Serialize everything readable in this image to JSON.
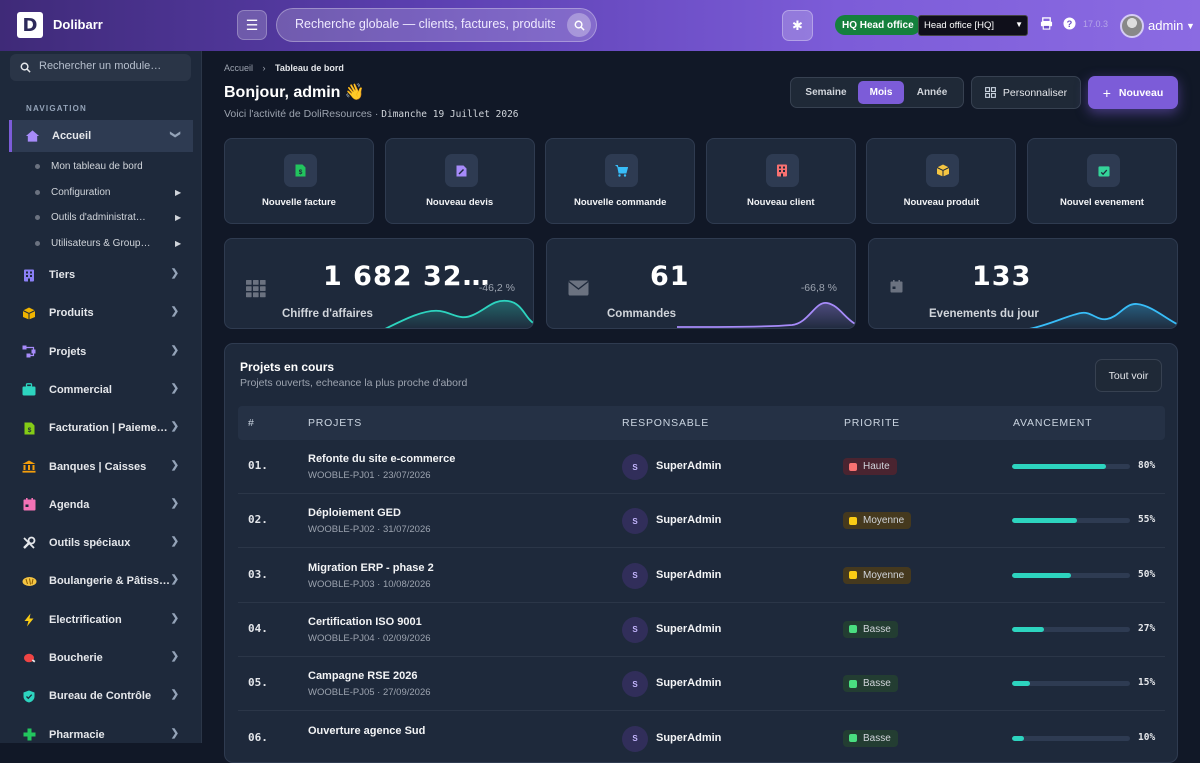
{
  "header": {
    "brand": "Dolibarr",
    "logo_letter": "D",
    "search_placeholder": "Recherche globale — clients, factures, produits…",
    "entity_badge": "HQ Head office",
    "entity_select": "Head office [HQ]",
    "version": "17.0.3",
    "user": "admin"
  },
  "sidebar": {
    "search_placeholder": "Rechercher un module…",
    "section_label": "NAVIGATION",
    "active": {
      "label": "Accueil",
      "icon": "home-icon"
    },
    "subitems": [
      {
        "label": "Mon tableau de bord",
        "has_arrow": false
      },
      {
        "label": "Configuration",
        "has_arrow": true
      },
      {
        "label": "Outils d'administrat…",
        "has_arrow": true
      },
      {
        "label": "Utilisateurs & Group…",
        "has_arrow": true
      }
    ],
    "items": [
      {
        "label": "Tiers",
        "icon": "building-icon",
        "color": "#8b7ff5"
      },
      {
        "label": "Produits",
        "icon": "box-icon",
        "color": "#f0b400"
      },
      {
        "label": "Projets",
        "icon": "flow-icon",
        "color": "#a78bfa"
      },
      {
        "label": "Commercial",
        "icon": "briefcase-icon",
        "color": "#2dd4bf"
      },
      {
        "label": "Facturation | Paieme…",
        "icon": "invoice-icon",
        "color": "#84cc16"
      },
      {
        "label": "Banques | Caisses",
        "icon": "bank-icon",
        "color": "#f59e0b"
      },
      {
        "label": "Agenda",
        "icon": "calendar-icon",
        "color": "#f472b6"
      },
      {
        "label": "Outils spéciaux",
        "icon": "tools-icon",
        "color": "#e5e7eb"
      },
      {
        "label": "Boulangerie & Pâtiss…",
        "icon": "bread-icon",
        "color": "#f5c542"
      },
      {
        "label": "Electrification",
        "icon": "bolt-icon",
        "color": "#facc15"
      },
      {
        "label": "Boucherie",
        "icon": "meat-icon",
        "color": "#ef4444"
      },
      {
        "label": "Bureau de Contrôle",
        "icon": "shield-icon",
        "color": "#2dd4bf"
      },
      {
        "label": "Pharmacie",
        "icon": "cross-icon",
        "color": "#22c55e"
      }
    ]
  },
  "page": {
    "breadcrumb_root": "Accueil",
    "breadcrumb_current": "Tableau de bord",
    "greeting": "Bonjour, admin 👋",
    "subtitle": "Voici l'activité de DoliResources ·",
    "date": "Dimanche 19 Juillet 2026",
    "periods": [
      "Semaine",
      "Mois",
      "Année"
    ],
    "active_period": "Mois",
    "customize_label": "Personnaliser",
    "new_label": "Nouveau"
  },
  "quick_actions": [
    {
      "label": "Nouvelle facture",
      "icon": "invoice-icon",
      "color": "#22c55e"
    },
    {
      "label": "Nouveau devis",
      "icon": "quote-icon",
      "color": "#a78bfa"
    },
    {
      "label": "Nouvelle commande",
      "icon": "cart-icon",
      "color": "#38bdf8"
    },
    {
      "label": "Nouveau client",
      "icon": "building-icon",
      "color": "#f87171"
    },
    {
      "label": "Nouveau produit",
      "icon": "box-icon",
      "color": "#f5c542"
    },
    {
      "label": "Nouvel evenement",
      "icon": "calendar-check-icon",
      "color": "#34d399"
    }
  ],
  "kpis": [
    {
      "value": "1 682 32…",
      "label": "Chiffre d'affaires",
      "change": "-46,2 %",
      "icon": "grid-icon",
      "color": "#2dd4bf"
    },
    {
      "value": "61",
      "label": "Commandes",
      "change": "-66,8 %",
      "icon": "mail-icon",
      "color": "#a78bfa"
    },
    {
      "value": "133",
      "label": "Evenements du jour",
      "change": "",
      "icon": "calendar-icon",
      "color": "#38bdf8"
    }
  ],
  "projects": {
    "title": "Projets en cours",
    "subtitle": "Projets ouverts, echeance la plus proche d'abord",
    "view_all": "Tout voir",
    "columns": [
      "#",
      "PROJETS",
      "RESPONSABLE",
      "PRIORITE",
      "AVANCEMENT"
    ],
    "rows": [
      {
        "num": "01.",
        "name": "Refonte du site e-commerce",
        "ref": "WOOBLE-PJ01 · 23/07/2026",
        "owner_initial": "S",
        "owner": "SuperAdmin",
        "priority": "Haute",
        "progress": 80,
        "progress_label": "80%"
      },
      {
        "num": "02.",
        "name": "Déploiement GED",
        "ref": "WOOBLE-PJ02 · 31/07/2026",
        "owner_initial": "S",
        "owner": "SuperAdmin",
        "priority": "Moyenne",
        "progress": 55,
        "progress_label": "55%"
      },
      {
        "num": "03.",
        "name": "Migration ERP - phase 2",
        "ref": "WOOBLE-PJ03 · 10/08/2026",
        "owner_initial": "S",
        "owner": "SuperAdmin",
        "priority": "Moyenne",
        "progress": 50,
        "progress_label": "50%"
      },
      {
        "num": "04.",
        "name": "Certification ISO 9001",
        "ref": "WOOBLE-PJ04 · 02/09/2026",
        "owner_initial": "S",
        "owner": "SuperAdmin",
        "priority": "Basse",
        "progress": 27,
        "progress_label": "27%"
      },
      {
        "num": "05.",
        "name": "Campagne RSE 2026",
        "ref": "WOOBLE-PJ05 · 27/09/2026",
        "owner_initial": "S",
        "owner": "SuperAdmin",
        "priority": "Basse",
        "progress": 15,
        "progress_label": "15%"
      },
      {
        "num": "06.",
        "name": "Ouverture agence Sud",
        "ref": "",
        "owner_initial": "S",
        "owner": "SuperAdmin",
        "priority": "Basse",
        "progress": 10,
        "progress_label": "10%"
      }
    ]
  },
  "priority_colors": {
    "Haute": "#f87171",
    "Moyenne": "#facc15",
    "Basse": "#4ade80"
  }
}
